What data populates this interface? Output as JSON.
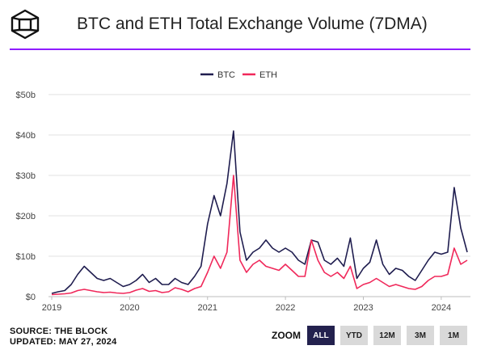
{
  "header": {
    "title": "BTC and ETH Total Exchange Volume (7DMA)"
  },
  "colors": {
    "btc": "#1f1d4f",
    "eth": "#f0285a",
    "accent": "#8f1cff",
    "grid": "#e2e2e2",
    "zoom_active": "#23214e",
    "zoom_inactive": "#d9d9d9"
  },
  "footer": {
    "source": "SOURCE: THE BLOCK",
    "updated": "UPDATED: MAY 27, 2024"
  },
  "zoom": {
    "label": "ZOOM",
    "buttons": [
      "ALL",
      "YTD",
      "12M",
      "3M",
      "1M"
    ],
    "active": "ALL"
  },
  "chart_data": {
    "type": "line",
    "title": "BTC and ETH Total Exchange Volume (7DMA)",
    "legend_position": "top-center",
    "grid": true,
    "y_ticks": [
      "$0",
      "$10b",
      "$20b",
      "$30b",
      "$40b",
      "$50b"
    ],
    "y_unit": "billion USD",
    "ylim": [
      0,
      50
    ],
    "x_ticks": [
      "2019",
      "2020",
      "2021",
      "2022",
      "2023",
      "2024"
    ],
    "xlim": [
      "2019-01",
      "2024-05"
    ],
    "series": [
      {
        "name": "BTC",
        "color": "#1f1d4f",
        "points": [
          [
            "2019-01",
            0.8
          ],
          [
            "2019-02",
            1.2
          ],
          [
            "2019-03",
            1.5
          ],
          [
            "2019-04",
            3.0
          ],
          [
            "2019-05",
            5.5
          ],
          [
            "2019-06",
            7.5
          ],
          [
            "2019-07",
            6.0
          ],
          [
            "2019-08",
            4.5
          ],
          [
            "2019-09",
            4.0
          ],
          [
            "2019-10",
            4.5
          ],
          [
            "2019-11",
            3.5
          ],
          [
            "2019-12",
            2.5
          ],
          [
            "2020-01",
            3.0
          ],
          [
            "2020-02",
            4.0
          ],
          [
            "2020-03",
            5.5
          ],
          [
            "2020-04",
            3.5
          ],
          [
            "2020-05",
            4.5
          ],
          [
            "2020-06",
            3.0
          ],
          [
            "2020-07",
            3.0
          ],
          [
            "2020-08",
            4.5
          ],
          [
            "2020-09",
            3.5
          ],
          [
            "2020-10",
            3.0
          ],
          [
            "2020-11",
            5.0
          ],
          [
            "2020-12",
            7.5
          ],
          [
            "2021-01",
            18.0
          ],
          [
            "2021-02",
            25.0
          ],
          [
            "2021-03",
            20.0
          ],
          [
            "2021-04",
            28.0
          ],
          [
            "2021-05",
            41.0
          ],
          [
            "2021-06",
            16.0
          ],
          [
            "2021-07",
            9.0
          ],
          [
            "2021-08",
            11.0
          ],
          [
            "2021-09",
            12.0
          ],
          [
            "2021-10",
            14.0
          ],
          [
            "2021-11",
            12.0
          ],
          [
            "2021-12",
            11.0
          ],
          [
            "2022-01",
            12.0
          ],
          [
            "2022-02",
            11.0
          ],
          [
            "2022-03",
            9.0
          ],
          [
            "2022-04",
            8.0
          ],
          [
            "2022-05",
            14.0
          ],
          [
            "2022-06",
            13.5
          ],
          [
            "2022-07",
            9.0
          ],
          [
            "2022-08",
            8.0
          ],
          [
            "2022-09",
            9.5
          ],
          [
            "2022-10",
            7.5
          ],
          [
            "2022-11",
            14.5
          ],
          [
            "2022-12",
            4.5
          ],
          [
            "2023-01",
            7.0
          ],
          [
            "2023-02",
            8.5
          ],
          [
            "2023-03",
            14.0
          ],
          [
            "2023-04",
            8.0
          ],
          [
            "2023-05",
            5.5
          ],
          [
            "2023-06",
            7.0
          ],
          [
            "2023-07",
            6.5
          ],
          [
            "2023-08",
            5.0
          ],
          [
            "2023-09",
            4.0
          ],
          [
            "2023-10",
            6.5
          ],
          [
            "2023-11",
            9.0
          ],
          [
            "2023-12",
            11.0
          ],
          [
            "2024-01",
            10.5
          ],
          [
            "2024-02",
            11.0
          ],
          [
            "2024-03",
            27.0
          ],
          [
            "2024-04",
            17.0
          ],
          [
            "2024-05",
            11.0
          ]
        ]
      },
      {
        "name": "ETH",
        "color": "#f0285a",
        "points": [
          [
            "2019-01",
            0.5
          ],
          [
            "2019-02",
            0.6
          ],
          [
            "2019-03",
            0.7
          ],
          [
            "2019-04",
            0.9
          ],
          [
            "2019-05",
            1.5
          ],
          [
            "2019-06",
            1.8
          ],
          [
            "2019-07",
            1.5
          ],
          [
            "2019-08",
            1.2
          ],
          [
            "2019-09",
            1.0
          ],
          [
            "2019-10",
            1.1
          ],
          [
            "2019-11",
            0.9
          ],
          [
            "2019-12",
            0.8
          ],
          [
            "2020-01",
            1.0
          ],
          [
            "2020-02",
            1.6
          ],
          [
            "2020-03",
            2.0
          ],
          [
            "2020-04",
            1.3
          ],
          [
            "2020-05",
            1.5
          ],
          [
            "2020-06",
            1.0
          ],
          [
            "2020-07",
            1.2
          ],
          [
            "2020-08",
            2.2
          ],
          [
            "2020-09",
            1.8
          ],
          [
            "2020-10",
            1.2
          ],
          [
            "2020-11",
            2.0
          ],
          [
            "2020-12",
            2.5
          ],
          [
            "2021-01",
            6.0
          ],
          [
            "2021-02",
            10.0
          ],
          [
            "2021-03",
            7.0
          ],
          [
            "2021-04",
            11.0
          ],
          [
            "2021-05",
            30.0
          ],
          [
            "2021-06",
            9.0
          ],
          [
            "2021-07",
            6.0
          ],
          [
            "2021-08",
            8.0
          ],
          [
            "2021-09",
            9.0
          ],
          [
            "2021-10",
            7.5
          ],
          [
            "2021-11",
            7.0
          ],
          [
            "2021-12",
            6.5
          ],
          [
            "2022-01",
            8.0
          ],
          [
            "2022-02",
            6.5
          ],
          [
            "2022-03",
            5.0
          ],
          [
            "2022-04",
            5.0
          ],
          [
            "2022-05",
            14.0
          ],
          [
            "2022-06",
            9.0
          ],
          [
            "2022-07",
            6.0
          ],
          [
            "2022-08",
            5.0
          ],
          [
            "2022-09",
            6.0
          ],
          [
            "2022-10",
            4.5
          ],
          [
            "2022-11",
            7.5
          ],
          [
            "2022-12",
            2.0
          ],
          [
            "2023-01",
            3.0
          ],
          [
            "2023-02",
            3.5
          ],
          [
            "2023-03",
            4.5
          ],
          [
            "2023-04",
            3.5
          ],
          [
            "2023-05",
            2.5
          ],
          [
            "2023-06",
            3.0
          ],
          [
            "2023-07",
            2.5
          ],
          [
            "2023-08",
            2.0
          ],
          [
            "2023-09",
            1.8
          ],
          [
            "2023-10",
            2.5
          ],
          [
            "2023-11",
            4.0
          ],
          [
            "2023-12",
            5.0
          ],
          [
            "2024-01",
            5.0
          ],
          [
            "2024-02",
            5.5
          ],
          [
            "2024-03",
            12.0
          ],
          [
            "2024-04",
            8.0
          ],
          [
            "2024-05",
            9.0
          ]
        ]
      }
    ]
  }
}
